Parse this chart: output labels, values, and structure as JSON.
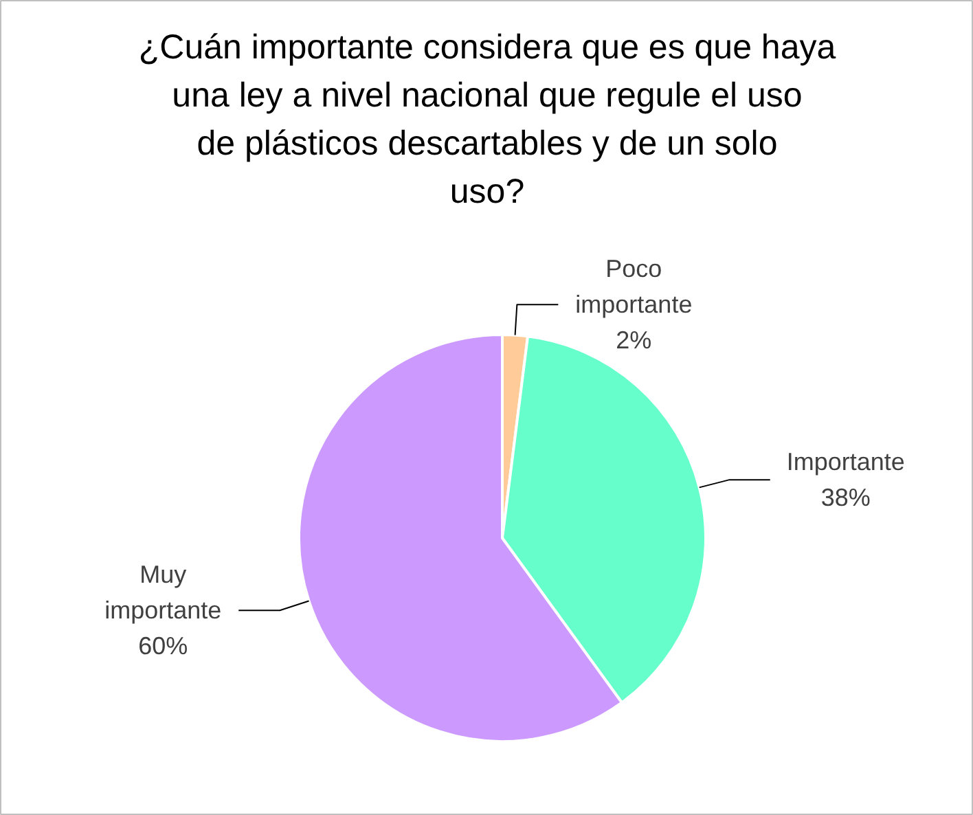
{
  "chart_data": {
    "type": "pie",
    "title": "¿Cuán importante considera que es que haya una ley a nivel nacional que regule el uso de plásticos descartables y de un solo uso?",
    "categories": [
      "Poco importante",
      "Importante",
      "Muy importante"
    ],
    "values": [
      2,
      38,
      60
    ],
    "colors": [
      "#ffcc99",
      "#66ffcc",
      "#cc99ff"
    ],
    "value_labels": [
      "2%",
      "38%",
      "60%"
    ]
  }
}
